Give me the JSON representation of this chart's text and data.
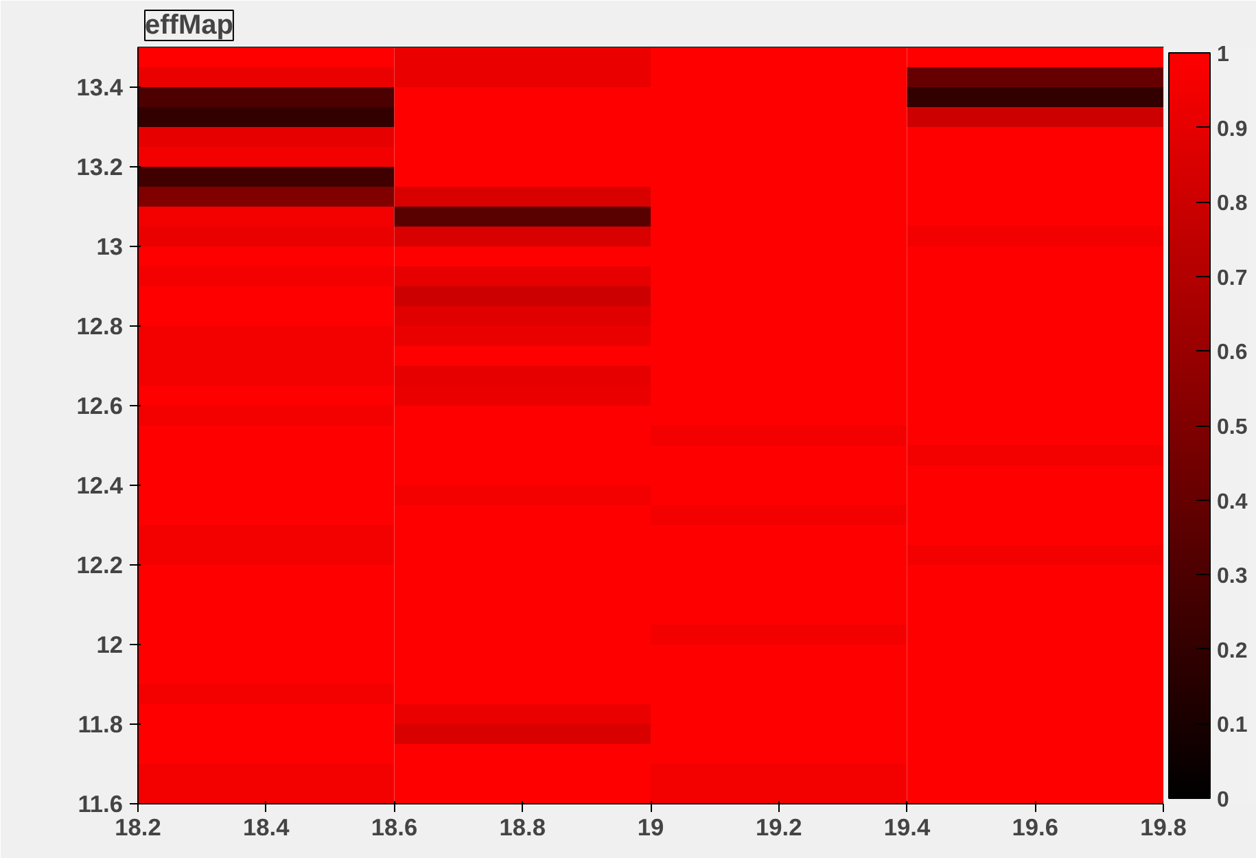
{
  "chart_data": {
    "type": "heatmap",
    "title": "effMap",
    "x": [
      18.4,
      18.8,
      19.2,
      19.6
    ],
    "y": [
      13.475,
      13.425,
      13.375,
      13.325,
      13.275,
      13.225,
      13.175,
      13.125,
      13.075,
      13.025,
      12.975,
      12.925,
      12.875,
      12.825,
      12.775,
      12.725,
      12.675,
      12.625,
      12.575,
      12.525,
      12.475,
      12.425,
      12.375,
      12.325,
      12.275,
      12.225,
      12.175,
      12.125,
      12.075,
      12.025,
      11.975,
      11.925,
      11.875,
      11.825,
      11.775,
      11.725,
      11.675,
      11.625
    ],
    "xlim": [
      18.2,
      19.8
    ],
    "ylim": [
      11.6,
      13.5
    ],
    "xticks": [
      18.2,
      18.4,
      18.6,
      18.8,
      19,
      19.2,
      19.4,
      19.6,
      19.8
    ],
    "yticks": [
      11.6,
      11.8,
      12,
      12.2,
      12.4,
      12.6,
      12.8,
      13,
      13.2,
      13.4
    ],
    "clim": [
      0,
      1
    ],
    "cticks": [
      0,
      0.1,
      0.2,
      0.3,
      0.4,
      0.5,
      0.6,
      0.7,
      0.8,
      0.9,
      1
    ],
    "cells": [
      [
        1.0,
        0.92,
        1.0,
        1.0
      ],
      [
        0.92,
        0.92,
        1.0,
        0.4
      ],
      [
        0.3,
        1.0,
        1.0,
        0.2
      ],
      [
        0.2,
        1.0,
        1.0,
        0.8
      ],
      [
        0.9,
        1.0,
        1.0,
        1.0
      ],
      [
        0.95,
        1.0,
        1.0,
        1.0
      ],
      [
        0.25,
        1.0,
        1.0,
        1.0
      ],
      [
        0.5,
        0.85,
        1.0,
        1.0
      ],
      [
        0.95,
        0.35,
        1.0,
        1.0
      ],
      [
        0.92,
        0.85,
        1.0,
        0.95
      ],
      [
        1.0,
        1.0,
        1.0,
        1.0
      ],
      [
        0.95,
        0.9,
        1.0,
        1.0
      ],
      [
        1.0,
        0.8,
        1.0,
        1.0
      ],
      [
        1.0,
        0.88,
        1.0,
        1.0
      ],
      [
        0.95,
        0.92,
        1.0,
        1.0
      ],
      [
        0.95,
        1.0,
        1.0,
        1.0
      ],
      [
        0.95,
        0.9,
        1.0,
        1.0
      ],
      [
        1.0,
        0.92,
        1.0,
        1.0
      ],
      [
        0.95,
        1.0,
        1.0,
        1.0
      ],
      [
        1.0,
        1.0,
        0.95,
        1.0
      ],
      [
        1.0,
        1.0,
        1.0,
        0.95
      ],
      [
        1.0,
        1.0,
        1.0,
        1.0
      ],
      [
        1.0,
        0.95,
        1.0,
        1.0
      ],
      [
        1.0,
        1.0,
        0.95,
        1.0
      ],
      [
        0.95,
        1.0,
        1.0,
        1.0
      ],
      [
        0.95,
        1.0,
        1.0,
        0.95
      ],
      [
        1.0,
        1.0,
        1.0,
        1.0
      ],
      [
        1.0,
        1.0,
        1.0,
        1.0
      ],
      [
        1.0,
        1.0,
        1.0,
        1.0
      ],
      [
        1.0,
        1.0,
        0.95,
        1.0
      ],
      [
        1.0,
        1.0,
        1.0,
        1.0
      ],
      [
        1.0,
        1.0,
        1.0,
        1.0
      ],
      [
        0.95,
        1.0,
        1.0,
        1.0
      ],
      [
        1.0,
        0.92,
        1.0,
        1.0
      ],
      [
        1.0,
        0.85,
        1.0,
        1.0
      ],
      [
        1.0,
        1.0,
        1.0,
        1.0
      ],
      [
        0.95,
        1.0,
        0.95,
        1.0
      ],
      [
        0.95,
        1.0,
        0.95,
        1.0
      ]
    ]
  }
}
